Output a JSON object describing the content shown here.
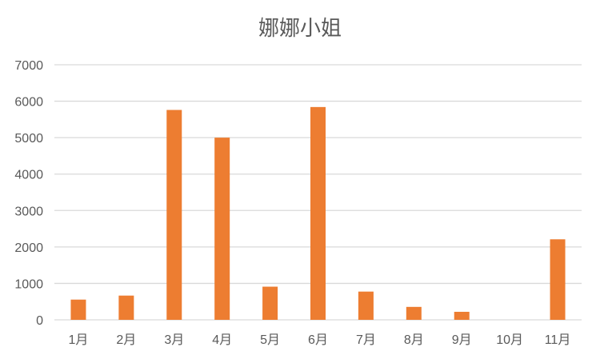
{
  "chart_data": {
    "type": "bar",
    "title": "娜娜小姐",
    "categories": [
      "1月",
      "2月",
      "3月",
      "4月",
      "5月",
      "6月",
      "7月",
      "8月",
      "9月",
      "10月",
      "11月"
    ],
    "values": [
      555,
      665,
      5760,
      5000,
      910,
      5840,
      775,
      355,
      220,
      0,
      2210
    ],
    "yticks": [
      "0",
      "1000",
      "2000",
      "3000",
      "4000",
      "5000",
      "6000",
      "7000"
    ],
    "ylim": [
      0,
      7000
    ],
    "grid": true,
    "bar_color": "#ED7D31",
    "grid_color": "#D9D9D9"
  }
}
